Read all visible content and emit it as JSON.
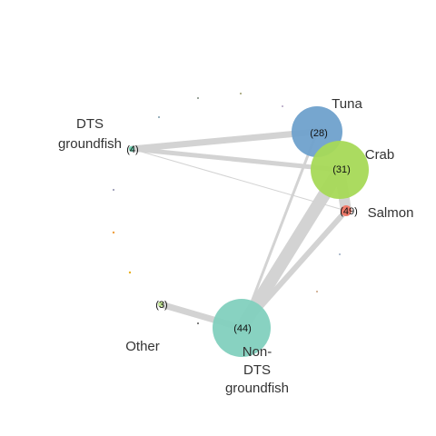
{
  "graph": {
    "nodes": [
      {
        "id": "tuna",
        "label_lines": [
          "Tuna"
        ],
        "count_label": "(28)",
        "color": "#6fa1cc"
      },
      {
        "id": "crab",
        "label_lines": [
          "Crab"
        ],
        "count_label": "(31)",
        "color": "#a6d957"
      },
      {
        "id": "salmon",
        "label_lines": [
          "Salmon"
        ],
        "count_label": "(49)",
        "color": "#ef7b6b"
      },
      {
        "id": "dts",
        "label_lines": [
          "DTS",
          "groundfish"
        ],
        "count_label": "(4)",
        "color": "#6fd3b3"
      },
      {
        "id": "other",
        "label_lines": [
          "Other"
        ],
        "count_label": "(3)",
        "color": "#c9ec9a"
      },
      {
        "id": "nondts",
        "label_lines": [
          "Non-",
          "DTS",
          "groundfish"
        ],
        "count_label": "(44)",
        "color": "#82d0be"
      }
    ],
    "edges": [
      {
        "source": "dts",
        "target": "tuna",
        "weight": 7
      },
      {
        "source": "dts",
        "target": "crab",
        "weight": 5
      },
      {
        "source": "dts",
        "target": "salmon",
        "weight": 1
      },
      {
        "source": "crab",
        "target": "nondts",
        "weight": 14
      },
      {
        "source": "salmon",
        "target": "nondts",
        "weight": 6
      },
      {
        "source": "tuna",
        "target": "nondts",
        "weight": 3
      },
      {
        "source": "crab",
        "target": "salmon",
        "weight": 12
      },
      {
        "source": "other",
        "target": "nondts",
        "weight": 7
      }
    ],
    "edge_color": "#d3d3d3"
  }
}
